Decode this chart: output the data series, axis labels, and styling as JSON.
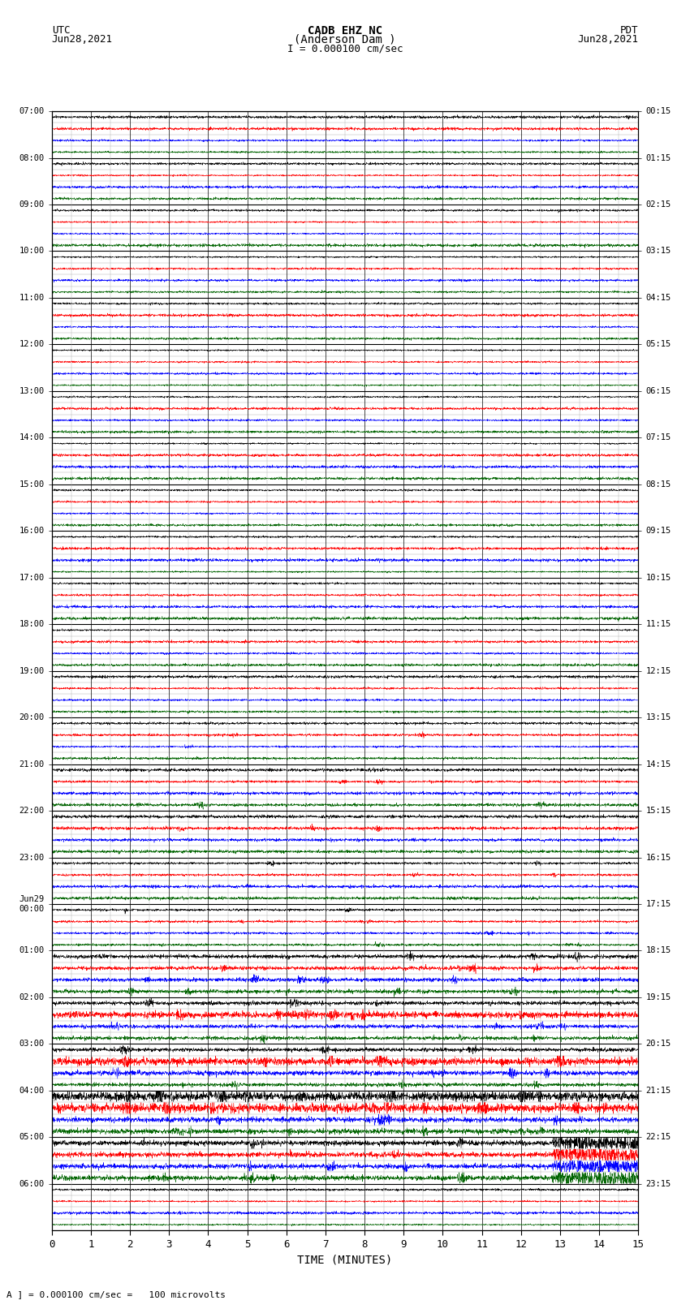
{
  "title_line1": "CADB EHZ NC",
  "title_line2": "(Anderson Dam )",
  "scale_text": "I = 0.000100 cm/sec",
  "left_label": "UTC",
  "left_date": "Jun28,2021",
  "right_label": "PDT",
  "right_date": "Jun28,2021",
  "xlabel": "TIME (MINUTES)",
  "footer_text": "A ] = 0.000100 cm/sec =   100 microvolts",
  "num_rows": 24,
  "x_max": 15,
  "background_color": "#ffffff",
  "grid_major_color": "#000000",
  "grid_minor_color": "#aaaaaa",
  "left_ytick_labels": [
    "07:00",
    "08:00",
    "09:00",
    "10:00",
    "11:00",
    "12:00",
    "13:00",
    "14:00",
    "15:00",
    "16:00",
    "17:00",
    "18:00",
    "19:00",
    "20:00",
    "21:00",
    "22:00",
    "23:00",
    "Jun29\n00:00",
    "01:00",
    "02:00",
    "03:00",
    "04:00",
    "05:00",
    "06:00"
  ],
  "right_ytick_labels": [
    "00:15",
    "01:15",
    "02:15",
    "03:15",
    "04:15",
    "05:15",
    "06:15",
    "07:15",
    "08:15",
    "09:15",
    "10:15",
    "11:15",
    "12:15",
    "13:15",
    "14:15",
    "15:15",
    "16:15",
    "17:15",
    "18:15",
    "19:15",
    "20:15",
    "21:15",
    "22:15",
    "23:15"
  ],
  "subrow_colors": [
    "#000000",
    "#ff0000",
    "#0000ff",
    "#006400"
  ],
  "num_subrows": 4,
  "eq_row": 17,
  "eq_subrow": 0,
  "eq_color": "#0000ff"
}
